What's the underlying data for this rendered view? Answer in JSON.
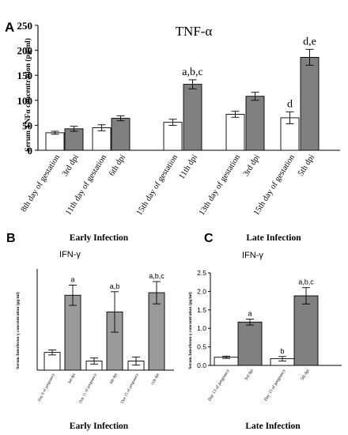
{
  "chart_data": [
    {
      "panel": "A",
      "type": "bar",
      "title": "TNF-α",
      "ylabel": "Serum TNFα concentration (pg/ml)",
      "ylim": [
        0,
        250
      ],
      "yticks": [
        "0",
        "50",
        "100",
        "150",
        "200",
        "250"
      ],
      "grid": false,
      "series": [
        {
          "name": "",
          "categories": [
            "8th day of gestation",
            "3rd dpi",
            "11th day of gestation",
            "6th dpi",
            "15th day of gestation",
            "11th dpi"
          ],
          "values": [
            35,
            43,
            45,
            64,
            56,
            132
          ],
          "errors": [
            3,
            5,
            6,
            5,
            6,
            9
          ],
          "fills": [
            "#ffffff",
            "#808080",
            "#ffffff",
            "#808080",
            "#ffffff",
            "#808080"
          ],
          "labels": [
            "",
            "",
            "",
            "",
            "",
            "a,b,c"
          ]
        },
        {
          "name": "",
          "categories": [
            "13th day of gestation",
            "3rd dpi",
            "15th day of gestation",
            "5th dpi"
          ],
          "values": [
            72,
            108,
            65,
            186
          ],
          "errors": [
            6,
            8,
            12,
            16
          ],
          "fills": [
            "#ffffff",
            "#808080",
            "#ffffff",
            "#808080"
          ],
          "labels": [
            "",
            "",
            "d",
            "d,e"
          ]
        }
      ]
    },
    {
      "panel": "B",
      "type": "bar",
      "title": "Early Infection",
      "subtitle": "IFN-γ",
      "xlabel": "Early Infection",
      "ylabel": "Serum Interferon γ concentration (pg/ml)",
      "ylim": [
        0,
        2.0
      ],
      "categories": [
        "Day 8 of pregnancy",
        "3rd dpi",
        "Day 11 of pregnancy",
        "6th dpi",
        "Day 15 of pregnancy",
        "11th dpi"
      ],
      "values": [
        0.35,
        1.48,
        0.18,
        1.15,
        0.18,
        1.53
      ],
      "errors": [
        0.05,
        0.2,
        0.06,
        0.4,
        0.08,
        0.22
      ],
      "fills": [
        "#ffffff",
        "#9a9a9a",
        "#ffffff",
        "#9a9a9a",
        "#ffffff",
        "#9a9a9a"
      ],
      "labels": [
        "",
        "a",
        "",
        "a,b",
        "",
        "a,b,c"
      ]
    },
    {
      "panel": "C",
      "type": "bar",
      "title": "Late Infection",
      "subtitle": "IFN-γ",
      "xlabel": "Late Infection",
      "ylabel": "Serum Interferon γ concentration (pg/ml)",
      "ylim": [
        0,
        2.5
      ],
      "yticks": [
        "0.0",
        "0.5",
        "1.0",
        "1.5",
        "2.0",
        "2.5"
      ],
      "categories": [
        "Day 13 of pregnancy",
        "3rd dpi",
        "Day 15 of pregnancy",
        "5th dpi"
      ],
      "values": [
        0.22,
        1.17,
        0.18,
        1.88
      ],
      "errors": [
        0.03,
        0.08,
        0.06,
        0.22
      ],
      "fills": [
        "#ffffff",
        "#808080",
        "#ffffff",
        "#808080"
      ],
      "labels": [
        "",
        "a",
        "b",
        "a,b,c"
      ]
    }
  ],
  "panel_letters": {
    "a": "A",
    "b": "B",
    "c": "C"
  }
}
